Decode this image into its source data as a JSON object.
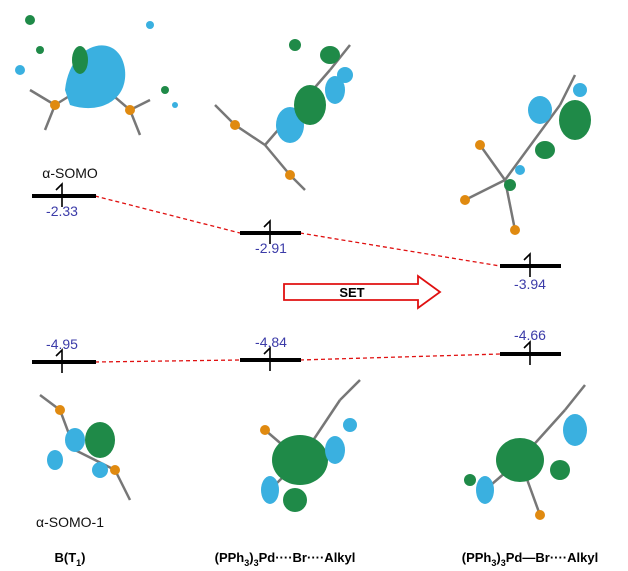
{
  "labels": {
    "somo": "α-SOMO",
    "somo_1": "α-SOMO-1"
  },
  "levels": [
    {
      "energy": -2.33
    },
    {
      "energy": -2.91
    },
    {
      "energy": -3.94
    },
    {
      "energy": -4.95
    },
    {
      "energy": -4.84
    },
    {
      "energy": -4.66
    }
  ],
  "arrow": {
    "label": "SET"
  },
  "columns": [
    {
      "parts": [
        "B(T",
        "1",
        ")"
      ]
    },
    {
      "parts": [
        "(PPh",
        "3",
        ")",
        "3",
        "Pd····Br····Alkyl"
      ]
    },
    {
      "parts": [
        "(PPh",
        "3",
        ")",
        "3",
        "Pd—Br····Alkyl"
      ]
    }
  ]
}
